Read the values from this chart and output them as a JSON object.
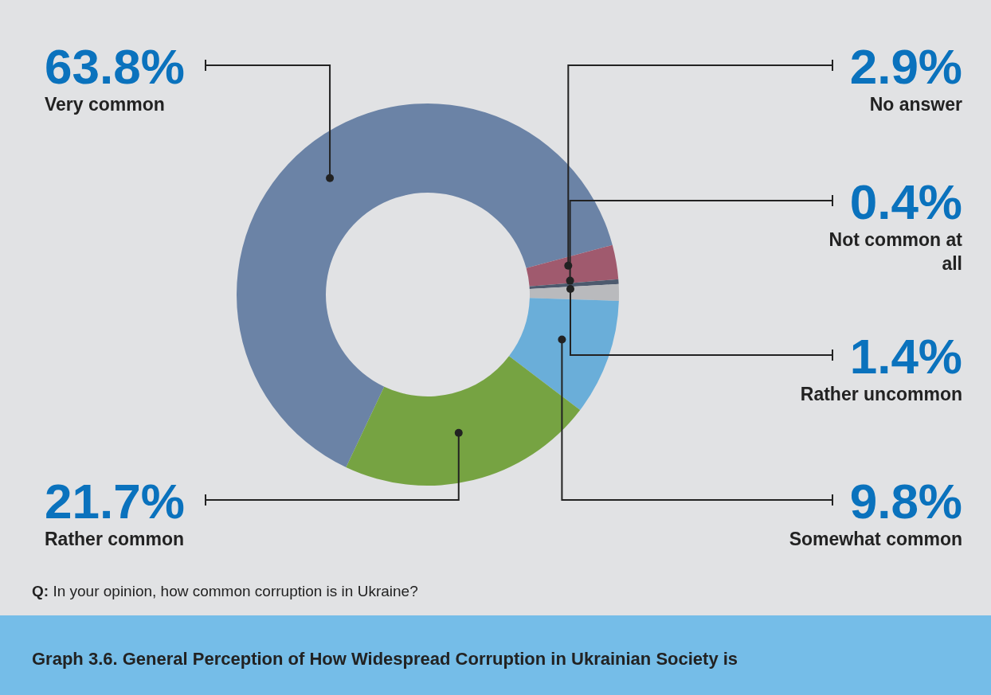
{
  "chart_data": {
    "type": "donut",
    "title": "Graph 3.6. General Perception of How Widespread Corruption in Ukrainian Society is",
    "annotations": [
      "Q: In your opinion, how common corruption is in Ukraine?"
    ],
    "categories": [
      "Very common",
      "No answer",
      "Not common at all",
      "Rather uncommon",
      "Somewhat common",
      "Rather common"
    ],
    "values": [
      63.8,
      2.9,
      0.4,
      1.4,
      9.8,
      21.7
    ],
    "value_labels": [
      "63.8%",
      "2.9%",
      "0.4%",
      "1.4%",
      "9.8%",
      "21.7%"
    ],
    "colors": [
      "#6b83a6",
      "#a05a6e",
      "#4d5a6e",
      "#b9babd",
      "#6aaed9",
      "#76a342"
    ]
  }
}
